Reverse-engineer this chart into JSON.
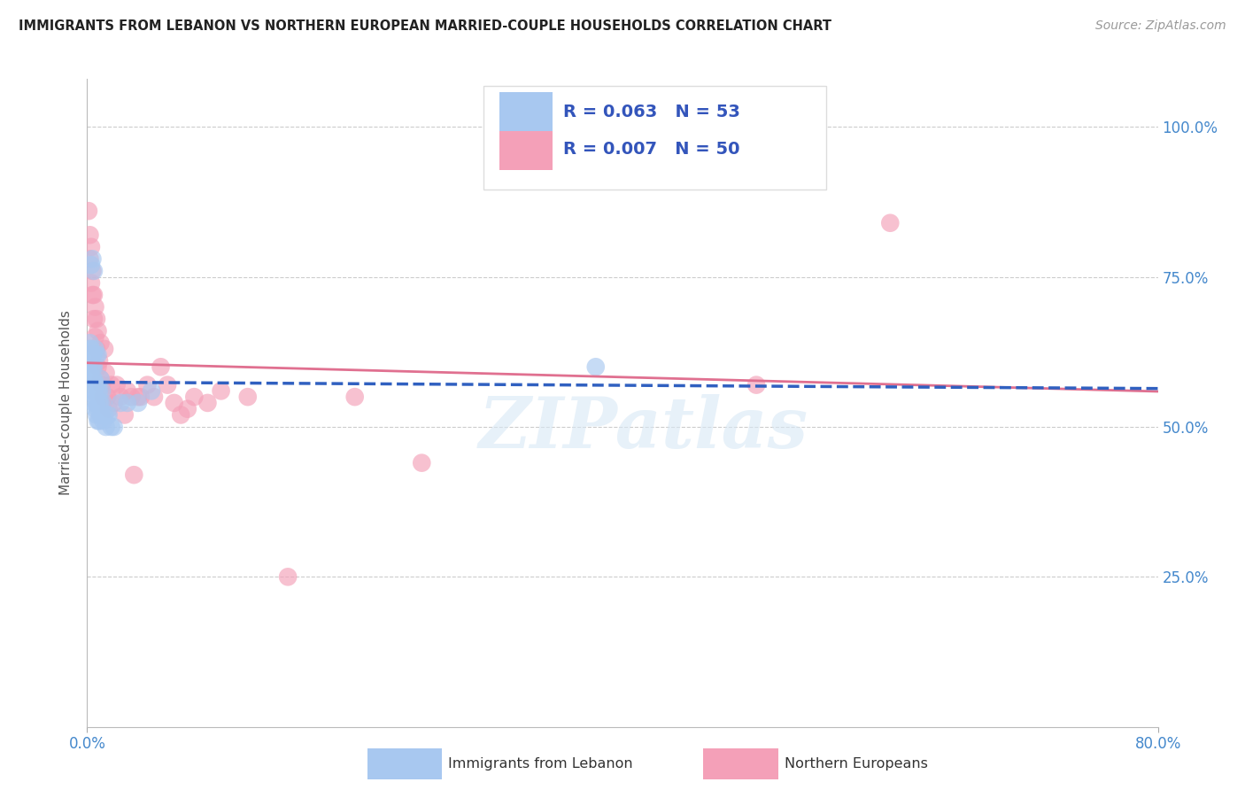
{
  "title": "IMMIGRANTS FROM LEBANON VS NORTHERN EUROPEAN MARRIED-COUPLE HOUSEHOLDS CORRELATION CHART",
  "source": "Source: ZipAtlas.com",
  "ylabel": "Married-couple Households",
  "legend1_label": "R = 0.063   N = 53",
  "legend2_label": "R = 0.007   N = 50",
  "bottom_legend1": "Immigrants from Lebanon",
  "bottom_legend2": "Northern Europeans",
  "blue_color": "#a8c8f0",
  "pink_color": "#f4a0b8",
  "blue_line_color": "#3060c0",
  "pink_line_color": "#e07090",
  "watermark": "ZIPatlas",
  "blue_x": [
    0.001,
    0.002,
    0.002,
    0.002,
    0.003,
    0.003,
    0.003,
    0.003,
    0.003,
    0.004,
    0.004,
    0.004,
    0.004,
    0.004,
    0.005,
    0.005,
    0.005,
    0.005,
    0.005,
    0.005,
    0.006,
    0.006,
    0.006,
    0.006,
    0.007,
    0.007,
    0.007,
    0.007,
    0.008,
    0.008,
    0.008,
    0.008,
    0.009,
    0.009,
    0.009,
    0.01,
    0.01,
    0.01,
    0.011,
    0.011,
    0.012,
    0.012,
    0.013,
    0.014,
    0.015,
    0.016,
    0.018,
    0.02,
    0.025,
    0.03,
    0.038,
    0.048,
    0.38
  ],
  "blue_y": [
    0.595,
    0.61,
    0.63,
    0.64,
    0.58,
    0.6,
    0.62,
    0.63,
    0.77,
    0.56,
    0.58,
    0.6,
    0.62,
    0.78,
    0.54,
    0.56,
    0.58,
    0.6,
    0.62,
    0.76,
    0.53,
    0.55,
    0.57,
    0.63,
    0.52,
    0.54,
    0.57,
    0.62,
    0.51,
    0.53,
    0.56,
    0.62,
    0.51,
    0.54,
    0.56,
    0.52,
    0.54,
    0.58,
    0.52,
    0.56,
    0.51,
    0.54,
    0.52,
    0.5,
    0.52,
    0.52,
    0.5,
    0.5,
    0.54,
    0.54,
    0.54,
    0.56,
    0.6
  ],
  "pink_x": [
    0.001,
    0.002,
    0.002,
    0.003,
    0.003,
    0.004,
    0.004,
    0.005,
    0.005,
    0.006,
    0.006,
    0.007,
    0.007,
    0.008,
    0.008,
    0.009,
    0.01,
    0.01,
    0.011,
    0.012,
    0.013,
    0.014,
    0.015,
    0.016,
    0.018,
    0.02,
    0.022,
    0.025,
    0.028,
    0.03,
    0.033,
    0.035,
    0.038,
    0.04,
    0.045,
    0.05,
    0.055,
    0.06,
    0.065,
    0.07,
    0.075,
    0.08,
    0.09,
    0.1,
    0.12,
    0.15,
    0.2,
    0.25,
    0.5,
    0.6
  ],
  "pink_y": [
    0.86,
    0.78,
    0.82,
    0.74,
    0.8,
    0.72,
    0.76,
    0.68,
    0.72,
    0.65,
    0.7,
    0.63,
    0.68,
    0.6,
    0.66,
    0.61,
    0.58,
    0.64,
    0.57,
    0.55,
    0.63,
    0.59,
    0.55,
    0.53,
    0.57,
    0.54,
    0.57,
    0.55,
    0.52,
    0.56,
    0.55,
    0.42,
    0.55,
    0.55,
    0.57,
    0.55,
    0.6,
    0.57,
    0.54,
    0.52,
    0.53,
    0.55,
    0.54,
    0.56,
    0.55,
    0.25,
    0.55,
    0.44,
    0.57,
    0.84
  ]
}
